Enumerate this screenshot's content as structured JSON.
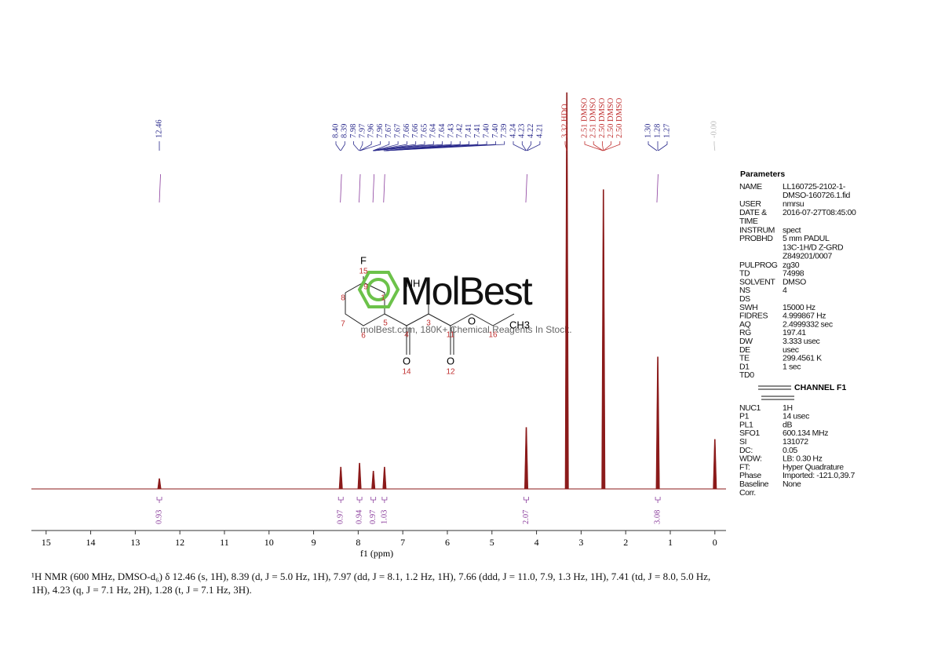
{
  "chart_data": {
    "type": "nmr-spectrum",
    "x_label": "f1 (ppm)",
    "xlim": [
      15.33,
      -0.25
    ],
    "xticks": [
      15,
      14,
      13,
      12,
      11,
      10,
      9,
      8,
      7,
      6,
      5,
      4,
      3,
      2,
      1,
      0
    ],
    "ylim": [
      0,
      100
    ],
    "line_color": "#8b1a1a",
    "peaks": [
      {
        "x": 12.46,
        "height": 2.6
      },
      {
        "x": 8.39,
        "height": 5.5
      },
      {
        "x": 7.97,
        "height": 6.5
      },
      {
        "x": 7.66,
        "height": 4.5
      },
      {
        "x": 7.41,
        "height": 5.5
      },
      {
        "x": 4.23,
        "height": 15.5
      },
      {
        "x": 3.32,
        "height": 100
      },
      {
        "x": 2.5,
        "height": 75.5
      },
      {
        "x": 1.28,
        "height": 33.3
      },
      {
        "x": 0,
        "height": 12.5
      }
    ],
    "peak_label_groups": [
      {
        "color": "#2a2a8c",
        "labels": [
          {
            "value": 12.46,
            "label": "12.46"
          }
        ]
      },
      {
        "color": "#2a2a8c",
        "labels": [
          {
            "value": 8.4,
            "label": "8.40"
          },
          {
            "value": 8.39,
            "label": "8.39"
          },
          {
            "value": 7.98,
            "label": "7.98"
          },
          {
            "value": 7.97,
            "label": "7.97"
          },
          {
            "value": 7.96,
            "label": "7.96"
          },
          {
            "value": 7.96,
            "label": "7.96"
          },
          {
            "value": 7.67,
            "label": "7.67"
          },
          {
            "value": 7.67,
            "label": "7.67"
          },
          {
            "value": 7.66,
            "label": "7.66"
          },
          {
            "value": 7.66,
            "label": "7.66"
          },
          {
            "value": 7.65,
            "label": "7.65"
          },
          {
            "value": 7.64,
            "label": "7.64"
          },
          {
            "value": 7.64,
            "label": "7.64"
          },
          {
            "value": 7.43,
            "label": "7.43"
          },
          {
            "value": 7.42,
            "label": "7.42"
          },
          {
            "value": 7.41,
            "label": "7.41"
          },
          {
            "value": 7.41,
            "label": "7.41"
          },
          {
            "value": 7.4,
            "label": "7.40"
          },
          {
            "value": 7.4,
            "label": "7.40"
          },
          {
            "value": 7.39,
            "label": "7.39"
          },
          {
            "value": 4.24,
            "label": "4.24"
          },
          {
            "value": 4.23,
            "label": "4.23"
          },
          {
            "value": 4.22,
            "label": "4.22"
          },
          {
            "value": 4.21,
            "label": "4.21"
          }
        ]
      },
      {
        "color": "#c03030",
        "labels": [
          {
            "value": 3.32,
            "label": "3.32 HDO"
          }
        ]
      },
      {
        "color": "#c03030",
        "labels": [
          {
            "value": 2.51,
            "label": "2.51 DMSO"
          },
          {
            "value": 2.51,
            "label": "2.51 DMSO"
          },
          {
            "value": 2.5,
            "label": "2.50 DMSO"
          },
          {
            "value": 2.5,
            "label": "2.50 DMSO"
          },
          {
            "value": 2.5,
            "label": "2.50 DMSO"
          }
        ]
      },
      {
        "color": "#2a2a8c",
        "labels": [
          {
            "value": 1.3,
            "label": "1.30"
          },
          {
            "value": 1.28,
            "label": "1.28"
          },
          {
            "value": 1.27,
            "label": "1.27"
          }
        ]
      },
      {
        "color": "#bbbbbb",
        "labels": [
          {
            "value": 0,
            "label": "-0.00"
          }
        ]
      }
    ],
    "integrals": [
      {
        "x": 12.46,
        "value": 0.93
      },
      {
        "x": 8.39,
        "value": 0.97
      },
      {
        "x": 7.97,
        "value": 0.94
      },
      {
        "x": 7.66,
        "value": 0.97
      },
      {
        "x": 7.41,
        "value": 1.03
      },
      {
        "x": 4.23,
        "value": 2.07
      },
      {
        "x": 1.28,
        "value": 3.08
      }
    ],
    "integral_color": "#8a3c9c"
  },
  "parameters": {
    "title": "Parameters",
    "rows": [
      {
        "key": [
          "NAME"
        ],
        "value": [
          "LL160725-2102-1-",
          "DMSO-160726.1.fid"
        ]
      },
      {
        "key": [
          "USER"
        ],
        "value": [
          "nmrsu"
        ]
      },
      {
        "key": [
          "DATE &",
          "TIME"
        ],
        "value": [
          "2016-07-27T08:45:00"
        ]
      },
      {
        "key": [
          "INSTRUM"
        ],
        "value": [
          "spect"
        ]
      },
      {
        "key": [
          "PROBHD"
        ],
        "value": [
          "5 mm PADUL",
          "13C-1H/D Z-GRD",
          "Z849201/0007"
        ]
      },
      {
        "key": [
          "PULPROG"
        ],
        "value": [
          "zg30"
        ]
      },
      {
        "key": [
          "TD"
        ],
        "value": [
          "74998"
        ]
      },
      {
        "key": [
          "SOLVENT"
        ],
        "value": [
          "DMSO"
        ]
      },
      {
        "key": [
          "NS"
        ],
        "value": [
          "4"
        ]
      },
      {
        "key": [
          "DS"
        ],
        "value": []
      },
      {
        "key": [
          "SWH"
        ],
        "value": [
          "15000 Hz"
        ]
      },
      {
        "key": [
          "FIDRES"
        ],
        "value": [
          "4.999867 Hz"
        ]
      },
      {
        "key": [
          "AQ"
        ],
        "value": [
          "2.4999332 sec"
        ]
      },
      {
        "key": [
          "RG"
        ],
        "value": [
          "197.41"
        ]
      },
      {
        "key": [
          "DW"
        ],
        "value": [
          "3.333 usec"
        ]
      },
      {
        "key": [
          "DE"
        ],
        "value": [
          "usec"
        ]
      },
      {
        "key": [
          "TE"
        ],
        "value": [
          "299.4561 K"
        ]
      },
      {
        "key": [
          "D1"
        ],
        "value": [
          "1 sec"
        ]
      },
      {
        "key": [
          "TD0"
        ],
        "value": []
      }
    ],
    "channel_title": "CHANNEL F1",
    "channel_rows": [
      {
        "key": [
          "NUC1"
        ],
        "value": [
          "1H"
        ]
      },
      {
        "key": [
          "P1"
        ],
        "value": [
          "14 usec"
        ]
      },
      {
        "key": [
          "PL1"
        ],
        "value": [
          "dB"
        ]
      },
      {
        "key": [
          "SFO1"
        ],
        "value": [
          "600.134 MHz"
        ]
      },
      {
        "key": [
          "SI"
        ],
        "value": [
          "131072"
        ]
      },
      {
        "key": [
          "DC:"
        ],
        "value": [
          "0.05"
        ]
      },
      {
        "key": [
          "WDW:"
        ],
        "value": [
          "LB: 0.30 Hz"
        ]
      },
      {
        "key": [
          "FT:"
        ],
        "value": [
          "Hyper Quadrature"
        ]
      },
      {
        "key": [
          "Phase"
        ],
        "value": [
          "Imported: -121.0,39.7"
        ]
      },
      {
        "key": [
          "Baseline",
          "Corr."
        ],
        "value": [
          "None"
        ]
      }
    ]
  },
  "structure": {
    "atoms": [
      {
        "label": "F",
        "color": "#000000"
      },
      {
        "label": "15",
        "color": "#c03030"
      },
      {
        "label": "8",
        "color": "#c03030"
      },
      {
        "label": "9",
        "color": "#c03030"
      },
      {
        "label": "1",
        "color": "#c03030"
      },
      {
        "label": "NH",
        "color": "#000000"
      },
      {
        "label": "7",
        "color": "#c03030"
      },
      {
        "label": "6",
        "color": "#c03030"
      },
      {
        "label": "5",
        "color": "#c03030"
      },
      {
        "label": "4",
        "color": "#c03030"
      },
      {
        "label": "3",
        "color": "#c03030"
      },
      {
        "label": "11",
        "color": "#c03030"
      },
      {
        "label": "O",
        "color": "#000000"
      },
      {
        "label": "16",
        "color": "#c03030"
      },
      {
        "label": "CH3",
        "color": "#000000"
      },
      {
        "label": "O",
        "color": "#000000"
      },
      {
        "label": "14",
        "color": "#c03030"
      },
      {
        "label": "O",
        "color": "#000000"
      },
      {
        "label": "12",
        "color": "#c03030"
      }
    ]
  },
  "watermark": {
    "brand": "MolBest",
    "tagline": "molBest.com, 180K+ Chemical Reagents In Stock."
  },
  "caption": "¹H NMR (600 MHz, DMSO-d₆) δ 12.46 (s, 1H), 8.39 (d, J = 5.0 Hz, 1H), 7.97 (dd, J = 8.1, 1.2 Hz, 1H), 7.66 (ddd, J = 11.0, 7.9, 1.3 Hz, 1H), 7.41 (td, J = 8.0, 5.0 Hz, 1H), 4.23 (q, J = 7.1 Hz, 2H), 1.28 (t, J = 7.1 Hz, 3H)."
}
